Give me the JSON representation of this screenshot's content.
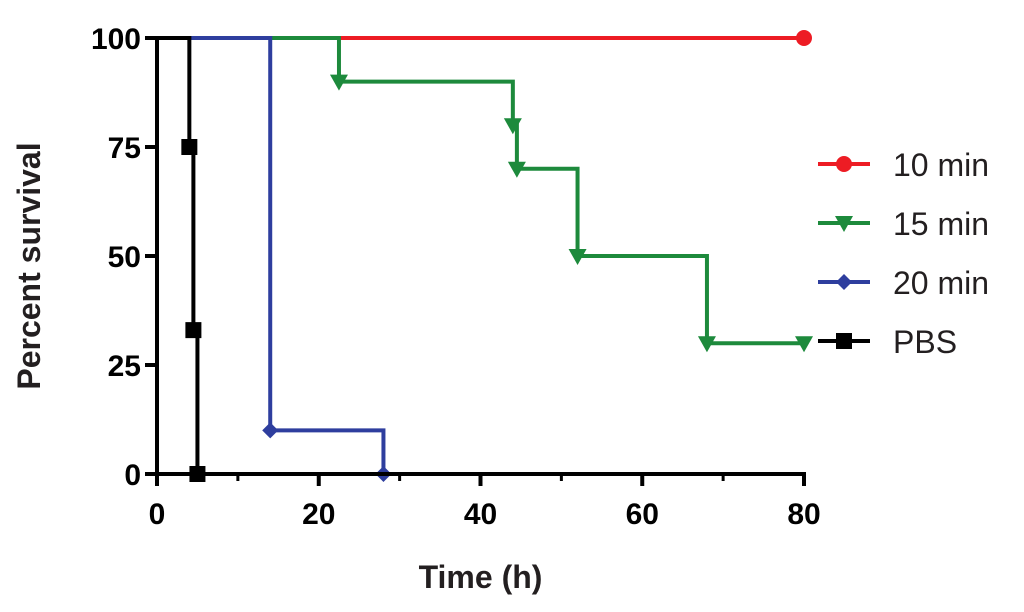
{
  "chart_data": {
    "type": "line",
    "xlabel": "Time (h)",
    "ylabel": "Percent survival",
    "xlim": [
      0,
      80
    ],
    "ylim": [
      0,
      100
    ],
    "x_ticks": [
      0,
      20,
      40,
      60,
      80
    ],
    "y_ticks": [
      0,
      25,
      50,
      75,
      100
    ],
    "x_tick_labels": [
      "0",
      "20",
      "40",
      "60",
      "80"
    ],
    "y_tick_labels": [
      "0",
      "25",
      "50",
      "75",
      "100"
    ],
    "x_minor_ticks": [
      10,
      30,
      50,
      70
    ],
    "grid": false,
    "legend_position": "right",
    "series": [
      {
        "name": "10 min",
        "color": "#ed1c24",
        "marker": "circle",
        "steps": [
          [
            0,
            100
          ],
          [
            80,
            100
          ]
        ],
        "markers": [
          [
            80,
            100
          ]
        ]
      },
      {
        "name": "15 min",
        "color": "#1d8a3c",
        "marker": "triangle-down",
        "steps": [
          [
            0,
            100
          ],
          [
            22.5,
            90
          ],
          [
            44,
            80
          ],
          [
            44.5,
            70
          ],
          [
            52,
            50
          ],
          [
            68,
            30
          ],
          [
            80,
            30
          ]
        ],
        "markers": [
          [
            22.5,
            90
          ],
          [
            44,
            80
          ],
          [
            44.5,
            70
          ],
          [
            52,
            50
          ],
          [
            68,
            30
          ],
          [
            80,
            30
          ]
        ]
      },
      {
        "name": "20 min",
        "color": "#2e3e9e",
        "marker": "diamond",
        "steps": [
          [
            0,
            100
          ],
          [
            14,
            10
          ],
          [
            28,
            0
          ]
        ],
        "markers": [
          [
            14,
            10
          ],
          [
            28,
            0
          ]
        ]
      },
      {
        "name": "PBS",
        "color": "#000000",
        "marker": "square",
        "steps": [
          [
            0,
            100
          ],
          [
            4,
            75
          ],
          [
            4.5,
            33
          ],
          [
            5,
            0
          ]
        ],
        "markers": [
          [
            4,
            75
          ],
          [
            4.5,
            33
          ],
          [
            5,
            0
          ]
        ]
      }
    ]
  }
}
